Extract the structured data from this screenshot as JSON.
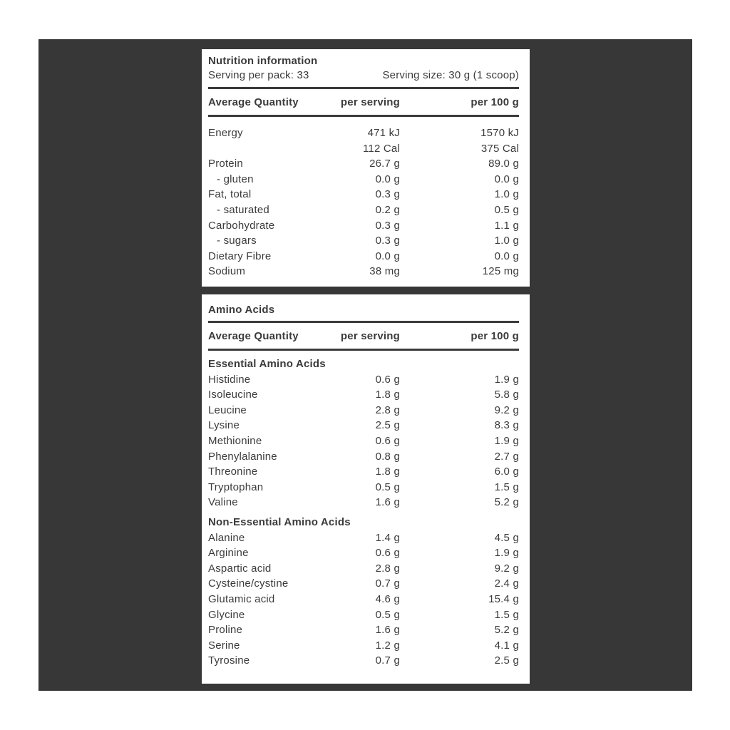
{
  "colors": {
    "backdrop": "#373737",
    "panel": "#ffffff",
    "text": "#3b3b3b"
  },
  "nutrition_panel": {
    "title": "Nutrition information",
    "serving_per_pack": "Serving per pack: 33",
    "serving_size": "Serving size: 30 g (1 scoop)",
    "columns": [
      "Average Quantity",
      "per serving",
      "per 100 g"
    ],
    "rows": [
      {
        "label": "Energy",
        "per_serving": "471 kJ",
        "per_100g": "1570 kJ",
        "indent": false
      },
      {
        "label": "",
        "per_serving": "112 Cal",
        "per_100g": "375 Cal",
        "indent": false
      },
      {
        "label": "Protein",
        "per_serving": "26.7 g",
        "per_100g": "89.0 g",
        "indent": false
      },
      {
        "label": "- gluten",
        "per_serving": "0.0 g",
        "per_100g": "0.0 g",
        "indent": true
      },
      {
        "label": "Fat, total",
        "per_serving": "0.3 g",
        "per_100g": "1.0 g",
        "indent": false
      },
      {
        "label": "- saturated",
        "per_serving": "0.2 g",
        "per_100g": "0.5 g",
        "indent": true
      },
      {
        "label": "Carbohydrate",
        "per_serving": "0.3 g",
        "per_100g": "1.1 g",
        "indent": false
      },
      {
        "label": "- sugars",
        "per_serving": "0.3 g",
        "per_100g": "1.0 g",
        "indent": true
      },
      {
        "label": "Dietary Fibre",
        "per_serving": "0.0 g",
        "per_100g": "0.0 g",
        "indent": false
      },
      {
        "label": "Sodium",
        "per_serving": "38 mg",
        "per_100g": "125 mg",
        "indent": false
      }
    ]
  },
  "amino_panel": {
    "title": "Amino Acids",
    "columns": [
      "Average Quantity",
      "per serving",
      "per 100 g"
    ],
    "sections": [
      {
        "heading": "Essential Amino Acids",
        "rows": [
          {
            "label": "Histidine",
            "per_serving": "0.6 g",
            "per_100g": "1.9 g"
          },
          {
            "label": "Isoleucine",
            "per_serving": "1.8 g",
            "per_100g": "5.8 g"
          },
          {
            "label": "Leucine",
            "per_serving": "2.8 g",
            "per_100g": "9.2 g"
          },
          {
            "label": "Lysine",
            "per_serving": "2.5 g",
            "per_100g": "8.3 g"
          },
          {
            "label": "Methionine",
            "per_serving": "0.6 g",
            "per_100g": "1.9 g"
          },
          {
            "label": "Phenylalanine",
            "per_serving": "0.8 g",
            "per_100g": "2.7 g"
          },
          {
            "label": "Threonine",
            "per_serving": "1.8 g",
            "per_100g": "6.0 g"
          },
          {
            "label": "Tryptophan",
            "per_serving": "0.5 g",
            "per_100g": "1.5 g"
          },
          {
            "label": "Valine",
            "per_serving": "1.6 g",
            "per_100g": "5.2 g"
          }
        ]
      },
      {
        "heading": "Non-Essential Amino Acids",
        "rows": [
          {
            "label": "Alanine",
            "per_serving": "1.4 g",
            "per_100g": "4.5 g"
          },
          {
            "label": "Arginine",
            "per_serving": "0.6 g",
            "per_100g": "1.9 g"
          },
          {
            "label": "Aspartic acid",
            "per_serving": "2.8 g",
            "per_100g": "9.2 g"
          },
          {
            "label": "Cysteine/cystine",
            "per_serving": "0.7 g",
            "per_100g": "2.4 g"
          },
          {
            "label": "Glutamic acid",
            "per_serving": "4.6 g",
            "per_100g": "15.4 g"
          },
          {
            "label": "Glycine",
            "per_serving": "0.5 g",
            "per_100g": "1.5 g"
          },
          {
            "label": "Proline",
            "per_serving": "1.6 g",
            "per_100g": "5.2 g"
          },
          {
            "label": "Serine",
            "per_serving": "1.2 g",
            "per_100g": "4.1 g"
          },
          {
            "label": "Tyrosine",
            "per_serving": "0.7 g",
            "per_100g": "2.5 g"
          }
        ]
      }
    ]
  }
}
